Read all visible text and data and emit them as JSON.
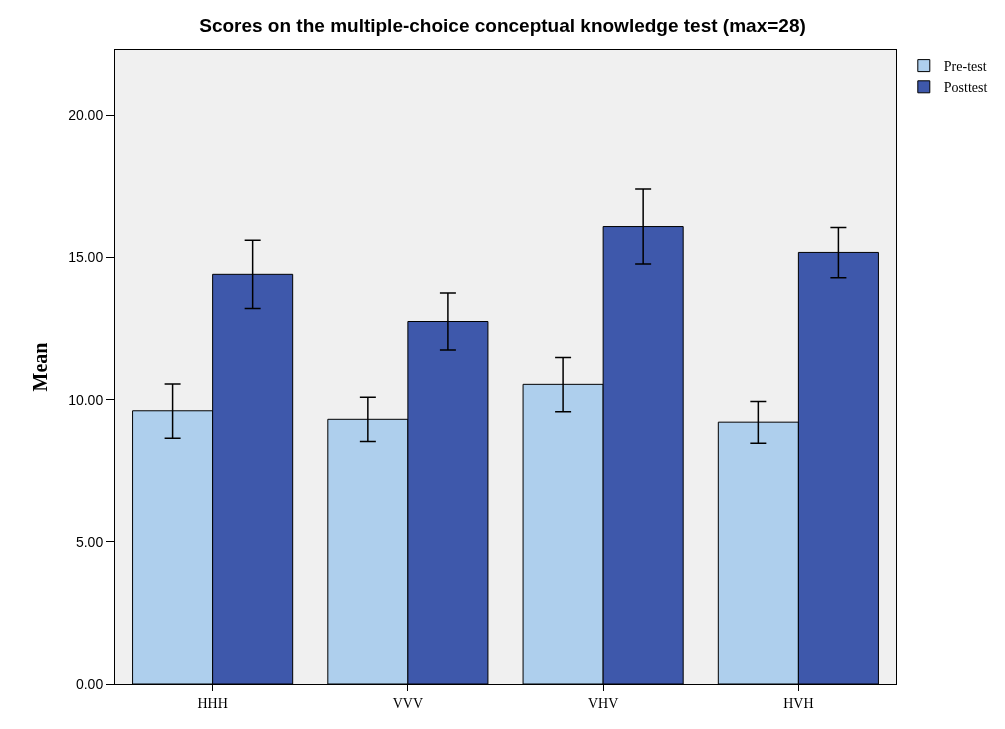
{
  "chart_data": {
    "type": "bar",
    "title": "Scores on the multiple-choice conceptual knowledge test (max=28)",
    "ylabel": "Mean",
    "categories": [
      "HHH",
      "VVV",
      "VHV",
      "HVH"
    ],
    "series": [
      {
        "name": "Pre-test",
        "color": "#aecfed",
        "values": [
          9.61,
          9.31,
          10.54,
          9.21
        ],
        "errors": [
          [
            8.64,
            10.55
          ],
          [
            8.53,
            10.09
          ],
          [
            9.58,
            11.48
          ],
          [
            8.47,
            9.94
          ]
        ]
      },
      {
        "name": "Posttest",
        "color": "#3e58ab",
        "values": [
          14.41,
          12.75,
          16.09,
          15.18
        ],
        "errors": [
          [
            13.21,
            15.61
          ],
          [
            11.75,
            13.75
          ],
          [
            14.77,
            17.41
          ],
          [
            14.29,
            16.06
          ]
        ]
      }
    ],
    "ylim": [
      0,
      22.3
    ],
    "yticks": [
      {
        "value": 0,
        "label": "0.00"
      },
      {
        "value": 5,
        "label": "5.00"
      },
      {
        "value": 10,
        "label": "10.00"
      },
      {
        "value": 15,
        "label": "15.00"
      },
      {
        "value": 20,
        "label": "20.00"
      }
    ],
    "legend": "top right",
    "grid": false
  }
}
